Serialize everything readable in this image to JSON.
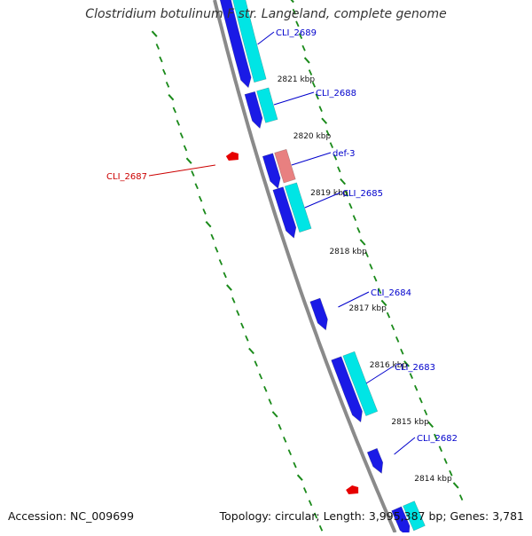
{
  "title": "Clostridium botulinum F str. Langeland, complete genome",
  "footer": {
    "accession": "Accession: NC_009699",
    "summary": "Topology: circular; Length: 3,995,387 bp; Genes: 3,781"
  },
  "colors": {
    "backbone": "#8a8a8a",
    "forward_cds": "#1a1ae6",
    "forward_rna": "#00e5e5",
    "forward_misc": "#e88080",
    "forward_label": "#0000cc",
    "reverse_cds": "#e60000",
    "reverse_label": "#cc0000",
    "tick_dots": "#1a8a1a",
    "kbp_text": "#111111"
  },
  "kbp_ticks": [
    "2821 kbp",
    "2820 kbp",
    "2819 kbp",
    "2818 kbp",
    "2817 kbp",
    "2816 kbp",
    "2815 kbp",
    "2814 kbp"
  ],
  "forward_genes": [
    {
      "label": "CLI_2689"
    },
    {
      "label": "CLI_2688"
    },
    {
      "label": "def-3"
    },
    {
      "label": "CLI_2685"
    },
    {
      "label": "CLI_2684"
    },
    {
      "label": "CLI_2683"
    },
    {
      "label": "CLI_2682"
    }
  ],
  "reverse_genes": [
    {
      "label": "CLI_2687"
    }
  ]
}
